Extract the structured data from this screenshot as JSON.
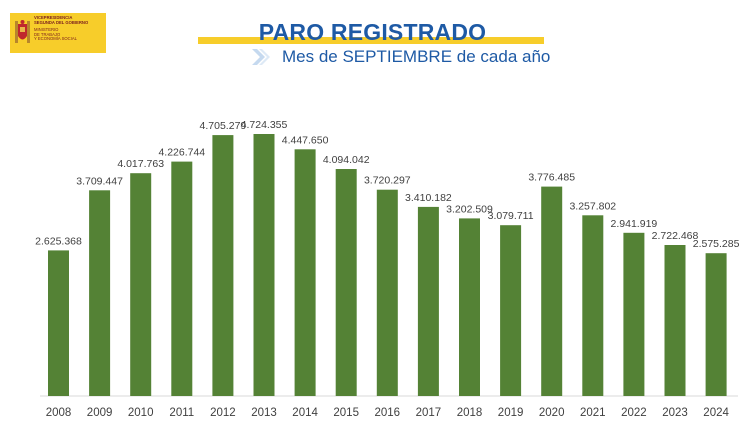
{
  "header": {
    "logo_line1": "VICEPRESIDENCIA\nSEGUNDA DEL GOBIERNO",
    "logo_line2": "MINISTERIO\nDE TRABAJO\nY ECONOMÍA SOCIAL",
    "title": "PARO REGISTRADO",
    "subtitle": "Mes de SEPTIEMBRE de cada año"
  },
  "colors": {
    "bar": "#548235",
    "title": "#1e5aa5",
    "accent": "#f7cd2a",
    "label": "#404040"
  },
  "chart_data": {
    "type": "bar",
    "title": "PARO REGISTRADO",
    "subtitle": "Mes de SEPTIEMBRE de cada año",
    "categories": [
      "2008",
      "2009",
      "2010",
      "2011",
      "2012",
      "2013",
      "2014",
      "2015",
      "2016",
      "2017",
      "2018",
      "2019",
      "2020",
      "2021",
      "2022",
      "2023",
      "2024"
    ],
    "values": [
      2625368,
      3709447,
      4017763,
      4226744,
      4705279,
      4724355,
      4447650,
      4094042,
      3720297,
      3410182,
      3202509,
      3079711,
      3776485,
      3257802,
      2941919,
      2722468,
      2575285
    ],
    "labels": [
      "2.625.368",
      "3.709.447",
      "4.017.763",
      "4.226.744",
      "4.705.279",
      "4.724.355",
      "4.447.650",
      "4.094.042",
      "3.720.297",
      "3.410.182",
      "3.202.509",
      "3.079.711",
      "3.776.485",
      "3.257.802",
      "2.941.919",
      "2.722.468",
      "2.575.285"
    ],
    "xlabel": "",
    "ylabel": "",
    "ylim": [
      0,
      4724355
    ],
    "grid": false,
    "legend": "none"
  }
}
